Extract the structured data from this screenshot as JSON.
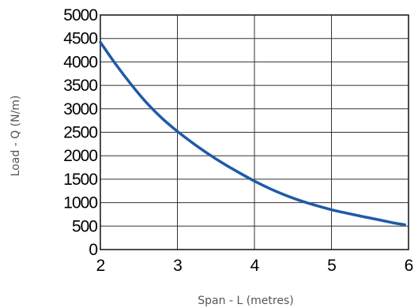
{
  "chart_data": {
    "type": "line",
    "title": "",
    "xlabel": "Span - L (metres)",
    "ylabel": "Load - Q (N/m)",
    "xlim": [
      2,
      6
    ],
    "ylim": [
      0,
      5000
    ],
    "x_ticks": [
      "2",
      "3",
      "4",
      "5",
      "6"
    ],
    "y_ticks": [
      "0",
      "500",
      "1000",
      "1500",
      "2000",
      "2500",
      "3000",
      "3500",
      "4000",
      "4500",
      "5000"
    ],
    "grid": true,
    "legend": "none",
    "line_color": "#1f5aa6",
    "series": [
      {
        "x": [
          2.0,
          2.2,
          2.4,
          2.6,
          2.8,
          3.0,
          3.2,
          3.4,
          3.6,
          3.8,
          4.0,
          4.2,
          4.4,
          4.6,
          4.8,
          5.0,
          5.2,
          5.4,
          5.6,
          5.8,
          5.95
        ],
        "values": [
          4420,
          3950,
          3520,
          3130,
          2800,
          2520,
          2270,
          2040,
          1830,
          1640,
          1460,
          1300,
          1160,
          1040,
          940,
          850,
          775,
          705,
          640,
          570,
          530
        ]
      }
    ]
  }
}
